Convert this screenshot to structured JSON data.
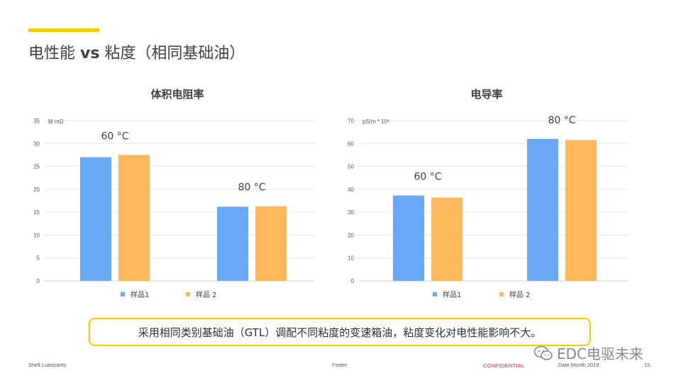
{
  "page": {
    "title_prefix": "电性能 ",
    "title_bold": "vs",
    "title_suffix": " 粘度（相同基础油）",
    "accent_color": "#f6c800"
  },
  "chart_data": [
    {
      "type": "bar",
      "title": "体积电阻率",
      "ylabel": "M mΩ",
      "ylim": [
        0,
        35
      ],
      "yticks": [
        0,
        5,
        10,
        15,
        20,
        25,
        30,
        35
      ],
      "grid": true,
      "categories": [
        "60 °C",
        "80 °C"
      ],
      "series": [
        {
          "name": "样品1",
          "color": "#6aa9f8",
          "values": [
            27,
            16.2
          ]
        },
        {
          "name": "样品 2",
          "color": "#ffb75b",
          "values": [
            27.5,
            16.3
          ]
        }
      ]
    },
    {
      "type": "bar",
      "title": "电导率",
      "ylabel": "pS/m * 10³",
      "ylim": [
        0,
        70
      ],
      "yticks": [
        0,
        10,
        20,
        30,
        40,
        50,
        60,
        70
      ],
      "grid": true,
      "categories": [
        "60 °C",
        "80 °C"
      ],
      "series": [
        {
          "name": "样品1",
          "color": "#6aa9f8",
          "values": [
            37.3,
            62
          ]
        },
        {
          "name": "样品 2",
          "color": "#ffb75b",
          "values": [
            36.4,
            61.5
          ]
        }
      ]
    }
  ],
  "note": "采用相同类别基础油（GTL）调配不同粘度的变速箱油，粘度变化对电性能影响不大。",
  "footer": {
    "left": "Shell Lubricants",
    "center": "Footer",
    "confidential": "CONFIDENTIAL",
    "date": "Date Month 2019",
    "page": "15"
  },
  "watermark": {
    "text": "EDC电驱未来",
    "icon": "wechat-icon"
  }
}
